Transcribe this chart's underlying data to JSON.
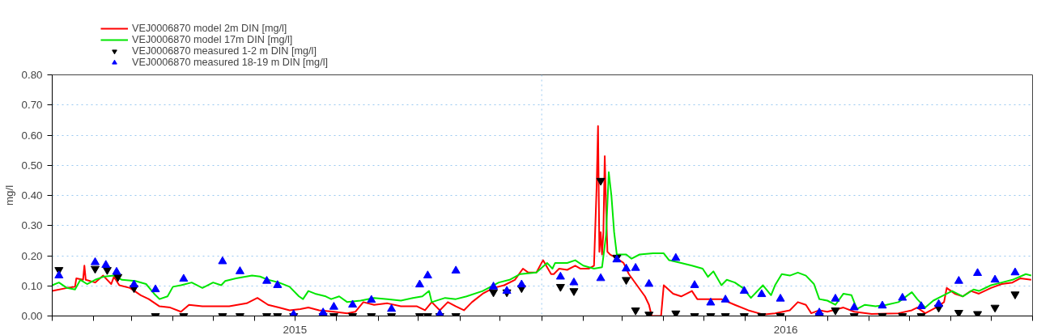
{
  "chart_data": {
    "type": "line",
    "ylabel": "mg/l",
    "legend": "top left",
    "grid": "y",
    "xlim": [
      "2015-01-01",
      "2017-01-01"
    ],
    "xticks": [
      {
        "value": "2015-01-01",
        "label": null
      },
      {
        "value": "2015-02-01",
        "label": null
      },
      {
        "value": "2015-03-01",
        "label": null
      },
      {
        "value": "2015-04-01",
        "label": null
      },
      {
        "value": "2015-05-01",
        "label": null
      },
      {
        "value": "2015-06-01",
        "label": null
      },
      {
        "value": "2015-07-01",
        "label": "2015"
      },
      {
        "value": "2015-08-01",
        "label": null
      },
      {
        "value": "2015-09-01",
        "label": null
      },
      {
        "value": "2015-10-01",
        "label": null
      },
      {
        "value": "2015-11-01",
        "label": null
      },
      {
        "value": "2015-12-01",
        "label": null
      },
      {
        "value": "2016-01-01",
        "label": null
      },
      {
        "value": "2016-02-01",
        "label": null
      },
      {
        "value": "2016-03-01",
        "label": null
      },
      {
        "value": "2016-04-01",
        "label": null
      },
      {
        "value": "2016-05-01",
        "label": null
      },
      {
        "value": "2016-06-01",
        "label": null
      },
      {
        "value": "2016-07-01",
        "label": "2016"
      },
      {
        "value": "2016-08-01",
        "label": null
      },
      {
        "value": "2016-09-01",
        "label": null
      },
      {
        "value": "2016-10-01",
        "label": null
      },
      {
        "value": "2016-11-01",
        "label": null
      },
      {
        "value": "2016-12-01",
        "label": null
      },
      {
        "value": "2017-01-01",
        "label": null
      }
    ],
    "ylim": [
      0,
      0.8
    ],
    "yticks": [
      {
        "value": 0,
        "label": "0.00"
      },
      {
        "value": 0.1,
        "label": "0.10"
      },
      {
        "value": 0.2,
        "label": "0.20"
      },
      {
        "value": 0.3,
        "label": "0.30"
      },
      {
        "value": 0.4,
        "label": "0.40"
      },
      {
        "value": 0.5,
        "label": "0.50"
      },
      {
        "value": 0.6,
        "label": "0.60"
      },
      {
        "value": 0.7,
        "label": "0.70"
      },
      {
        "value": 0.8,
        "label": "0.80"
      }
    ],
    "ref_lines": [
      {
        "axis": "x",
        "value": "2016-01-01",
        "label": null,
        "color": "#99c8f0",
        "line_style": "dotted"
      }
    ],
    "series": [
      {
        "name": "VEJ0006870 model 2m DIN [mg/l]",
        "color": "#ff0000",
        "line_style": "solid",
        "x": [
          "2015-01-01",
          "2015-01-12",
          "2015-01-18",
          "2015-01-19",
          "2015-01-24",
          "2015-01-25",
          "2015-01-26",
          "2015-02-02",
          "2015-02-08",
          "2015-02-14",
          "2015-02-16",
          "2015-02-20",
          "2015-02-28",
          "2015-03-08",
          "2015-03-14",
          "2015-03-22",
          "2015-03-30",
          "2015-04-07",
          "2015-04-13",
          "2015-04-23",
          "2015-05-13",
          "2015-05-26",
          "2015-06-03",
          "2015-06-11",
          "2015-06-19",
          "2015-06-27",
          "2015-07-05",
          "2015-07-11",
          "2015-07-19",
          "2015-07-30",
          "2015-08-09",
          "2015-08-15",
          "2015-08-21",
          "2015-08-29",
          "2015-09-08",
          "2015-09-18",
          "2015-09-30",
          "2015-10-06",
          "2015-10-11",
          "2015-10-17",
          "2015-10-23",
          "2015-10-29",
          "2015-11-04",
          "2015-11-10",
          "2015-11-18",
          "2015-11-26",
          "2015-12-04",
          "2015-12-12",
          "2015-12-18",
          "2015-12-22",
          "2015-12-28",
          "2016-01-02",
          "2016-01-08",
          "2016-01-10",
          "2016-01-14",
          "2016-01-20",
          "2016-01-26",
          "2016-01-30",
          "2016-02-05",
          "2016-02-09",
          "2016-02-11",
          "2016-02-12",
          "2016-02-13",
          "2016-02-14",
          "2016-02-15",
          "2016-02-16",
          "2016-02-17",
          "2016-02-18",
          "2016-02-19",
          "2016-02-21",
          "2016-02-25",
          "2016-03-02",
          "2016-03-06",
          "2016-03-12",
          "2016-03-18",
          "2016-03-21",
          "2016-03-23",
          "2016-03-30",
          "2016-04-01",
          "2016-04-08",
          "2016-04-14",
          "2016-04-22",
          "2016-04-26",
          "2016-05-04",
          "2016-05-14",
          "2016-05-24",
          "2016-06-03",
          "2016-06-14",
          "2016-06-23",
          "2016-07-04",
          "2016-07-10",
          "2016-07-16",
          "2016-07-20",
          "2016-07-26",
          "2016-08-01",
          "2016-08-13",
          "2016-08-21",
          "2016-09-03",
          "2016-09-23",
          "2016-10-03",
          "2016-10-07",
          "2016-10-13",
          "2016-10-21",
          "2016-10-27",
          "2016-10-29",
          "2016-11-04",
          "2016-11-10",
          "2016-11-16",
          "2016-11-22",
          "2016-12-01",
          "2016-12-09",
          "2016-12-17",
          "2016-12-23",
          "2016-12-31"
        ],
        "values": [
          0.083,
          0.093,
          0.097,
          0.125,
          0.12,
          0.167,
          0.12,
          0.111,
          0.134,
          0.106,
          0.13,
          0.102,
          0.093,
          0.069,
          0.056,
          0.032,
          0.028,
          0.014,
          0.037,
          0.032,
          0.032,
          0.042,
          0.06,
          0.037,
          0.028,
          0.019,
          0.023,
          0.028,
          0.019,
          0.014,
          0.009,
          0.014,
          0.046,
          0.037,
          0.042,
          0.032,
          0.032,
          0.019,
          0.046,
          0.019,
          0.046,
          0.032,
          0.019,
          0.046,
          0.074,
          0.093,
          0.102,
          0.12,
          0.157,
          0.144,
          0.144,
          0.185,
          0.139,
          0.139,
          0.157,
          0.153,
          0.167,
          0.157,
          0.157,
          0.167,
          0.435,
          0.63,
          0.213,
          0.278,
          0.204,
          0.278,
          0.53,
          0.361,
          0.213,
          0.204,
          0.194,
          0.176,
          0.139,
          0.102,
          0.065,
          0.037,
          0.0,
          0.0,
          0.102,
          0.074,
          0.065,
          0.083,
          0.056,
          0.056,
          0.056,
          0.037,
          0.019,
          0.005,
          0.009,
          0.019,
          0.046,
          0.037,
          0.009,
          0.019,
          0.014,
          0.028,
          0.014,
          0.007,
          0.009,
          0.019,
          0.028,
          0.009,
          0.028,
          0.046,
          0.093,
          0.074,
          0.065,
          0.083,
          0.074,
          0.093,
          0.106,
          0.111,
          0.125,
          0.12
        ]
      },
      {
        "name": "VEJ0006870 model 17m DIN [mg/l]",
        "color": "#00e600",
        "line_style": "solid",
        "x": [
          "2015-01-01",
          "2015-01-06",
          "2015-01-12",
          "2015-01-18",
          "2015-01-22",
          "2015-01-27",
          "2015-02-02",
          "2015-02-08",
          "2015-02-16",
          "2015-02-22",
          "2015-03-04",
          "2015-03-12",
          "2015-03-18",
          "2015-03-22",
          "2015-03-28",
          "2015-04-01",
          "2015-04-07",
          "2015-04-15",
          "2015-04-23",
          "2015-05-01",
          "2015-05-07",
          "2015-05-10",
          "2015-05-18",
          "2015-05-30",
          "2015-06-05",
          "2015-06-11",
          "2015-06-19",
          "2015-06-27",
          "2015-07-04",
          "2015-07-07",
          "2015-07-11",
          "2015-07-16",
          "2015-07-24",
          "2015-07-28",
          "2015-08-03",
          "2015-08-09",
          "2015-08-19",
          "2015-08-29",
          "2015-09-08",
          "2015-09-18",
          "2015-09-27",
          "2015-10-04",
          "2015-10-09",
          "2015-10-11",
          "2015-10-21",
          "2015-10-29",
          "2015-11-06",
          "2015-11-18",
          "2015-11-30",
          "2015-12-08",
          "2015-12-16",
          "2015-12-28",
          "2016-01-05",
          "2016-01-09",
          "2016-01-11",
          "2016-01-20",
          "2016-01-26",
          "2016-02-01",
          "2016-02-09",
          "2016-02-15",
          "2016-02-18",
          "2016-02-20",
          "2016-02-22",
          "2016-02-24",
          "2016-02-26",
          "2016-03-04",
          "2016-03-08",
          "2016-03-14",
          "2016-03-24",
          "2016-04-01",
          "2016-04-05",
          "2016-04-14",
          "2016-04-22",
          "2016-04-30",
          "2016-05-04",
          "2016-05-08",
          "2016-05-14",
          "2016-05-18",
          "2016-05-24",
          "2016-05-30",
          "2016-06-05",
          "2016-06-14",
          "2016-06-20",
          "2016-06-23",
          "2016-06-28",
          "2016-07-04",
          "2016-07-10",
          "2016-07-16",
          "2016-07-22",
          "2016-07-26",
          "2016-08-01",
          "2016-08-07",
          "2016-08-13",
          "2016-08-19",
          "2016-08-23",
          "2016-08-29",
          "2016-09-06",
          "2016-09-14",
          "2016-09-23",
          "2016-10-03",
          "2016-10-07",
          "2016-10-13",
          "2016-10-19",
          "2016-10-25",
          "2016-11-02",
          "2016-11-10",
          "2016-11-18",
          "2016-11-22",
          "2016-12-01",
          "2016-12-09",
          "2016-12-17",
          "2016-12-27",
          "2016-12-31"
        ],
        "values": [
          0.102,
          0.111,
          0.093,
          0.088,
          0.12,
          0.106,
          0.12,
          0.13,
          0.134,
          0.12,
          0.116,
          0.106,
          0.074,
          0.056,
          0.065,
          0.097,
          0.102,
          0.111,
          0.093,
          0.111,
          0.102,
          0.116,
          0.125,
          0.134,
          0.131,
          0.12,
          0.111,
          0.097,
          0.065,
          0.056,
          0.083,
          0.074,
          0.065,
          0.056,
          0.065,
          0.046,
          0.051,
          0.06,
          0.056,
          0.051,
          0.06,
          0.065,
          0.083,
          0.046,
          0.06,
          0.056,
          0.065,
          0.083,
          0.111,
          0.12,
          0.139,
          0.144,
          0.176,
          0.157,
          0.176,
          0.176,
          0.185,
          0.167,
          0.157,
          0.162,
          0.269,
          0.477,
          0.398,
          0.278,
          0.204,
          0.204,
          0.19,
          0.204,
          0.208,
          0.208,
          0.185,
          0.176,
          0.167,
          0.157,
          0.13,
          0.148,
          0.102,
          0.12,
          0.111,
          0.093,
          0.06,
          0.102,
          0.069,
          0.102,
          0.139,
          0.134,
          0.144,
          0.134,
          0.106,
          0.056,
          0.051,
          0.037,
          0.074,
          0.069,
          0.023,
          0.037,
          0.032,
          0.037,
          0.046,
          0.079,
          0.056,
          0.028,
          0.051,
          0.065,
          0.083,
          0.065,
          0.088,
          0.083,
          0.102,
          0.111,
          0.12,
          0.139,
          0.134
        ]
      },
      {
        "name": "VEJ0006870 measured 1-2 m DIN [mg/l]",
        "type": "scatter",
        "color": "#000000",
        "x": [
          "2015-01-06",
          "2015-02-02",
          "2015-02-11",
          "2015-02-19",
          "2015-03-03",
          "2015-03-19",
          "2015-04-09",
          "2015-05-08",
          "2015-05-21",
          "2015-06-10",
          "2015-06-18",
          "2015-06-30",
          "2015-07-22",
          "2015-07-30",
          "2015-08-13",
          "2015-08-27",
          "2015-09-11",
          "2015-10-02",
          "2015-10-08",
          "2015-10-17",
          "2015-10-29",
          "2015-11-26",
          "2015-12-06",
          "2015-12-17",
          "2016-01-15",
          "2016-01-25",
          "2016-02-14",
          "2016-02-26",
          "2016-03-04",
          "2016-03-11",
          "2016-03-21",
          "2016-04-10",
          "2016-04-24",
          "2016-05-06",
          "2016-05-17",
          "2016-05-31",
          "2016-06-13",
          "2016-06-27",
          "2016-07-26",
          "2016-08-07",
          "2016-08-21",
          "2016-09-11",
          "2016-09-26",
          "2016-10-10",
          "2016-10-23",
          "2016-11-07",
          "2016-11-21",
          "2016-12-04",
          "2016-12-19"
        ],
        "values": [
          0.153,
          0.157,
          0.153,
          0.13,
          0.093,
          0.0,
          0.0,
          0.0,
          0.0,
          0.0,
          0.0,
          0.0,
          0.0,
          0.0,
          0.0,
          0.0,
          0.0,
          0.0,
          0.0,
          0.0,
          0.0,
          0.079,
          0.079,
          0.093,
          0.097,
          0.083,
          0.449,
          0.194,
          0.12,
          0.019,
          0.005,
          0.009,
          0.0,
          0.0,
          0.0,
          0.0,
          0.0,
          0.0,
          0.0,
          0.019,
          0.0,
          0.0,
          0.0,
          0.0,
          0.028,
          0.011,
          0.007,
          0.028,
          0.072
        ]
      },
      {
        "name": "VEJ0006870 measured 18-19 m DIN [mg/l]",
        "type": "scatter",
        "color": "#0000ff",
        "marker": "triangle",
        "x": [
          "2015-01-06",
          "2015-02-02",
          "2015-02-10",
          "2015-02-18",
          "2015-03-03",
          "2015-03-19",
          "2015-04-09",
          "2015-05-08",
          "2015-05-21",
          "2015-06-10",
          "2015-06-18",
          "2015-06-30",
          "2015-07-22",
          "2015-07-30",
          "2015-08-13",
          "2015-08-27",
          "2015-09-11",
          "2015-10-02",
          "2015-10-08",
          "2015-10-17",
          "2015-10-29",
          "2015-11-26",
          "2015-12-06",
          "2015-12-17",
          "2016-01-15",
          "2016-01-25",
          "2016-02-14",
          "2016-02-26",
          "2016-03-04",
          "2016-03-11",
          "2016-03-21",
          "2016-04-10",
          "2016-04-24",
          "2016-05-06",
          "2016-05-17",
          "2016-05-31",
          "2016-06-13",
          "2016-06-27",
          "2016-07-26",
          "2016-08-07",
          "2016-08-21",
          "2016-09-11",
          "2016-09-26",
          "2016-10-10",
          "2016-10-23",
          "2016-11-07",
          "2016-11-21",
          "2016-12-04",
          "2016-12-19"
        ],
        "values": [
          0.134,
          0.178,
          0.169,
          0.146,
          0.104,
          0.088,
          0.123,
          0.181,
          0.148,
          0.116,
          0.102,
          0.005,
          0.011,
          0.03,
          0.037,
          0.053,
          0.023,
          0.104,
          0.134,
          0.006,
          0.15,
          0.097,
          0.083,
          0.104,
          0.13,
          0.111,
          0.125,
          0.187,
          0.157,
          0.159,
          0.106,
          0.192,
          0.102,
          0.044,
          0.054,
          0.083,
          0.072,
          0.057,
          0.011,
          0.057,
          0.028,
          0.034,
          0.06,
          0.032,
          0.039,
          0.116,
          0.142,
          0.12,
          0.144
        ]
      }
    ]
  }
}
